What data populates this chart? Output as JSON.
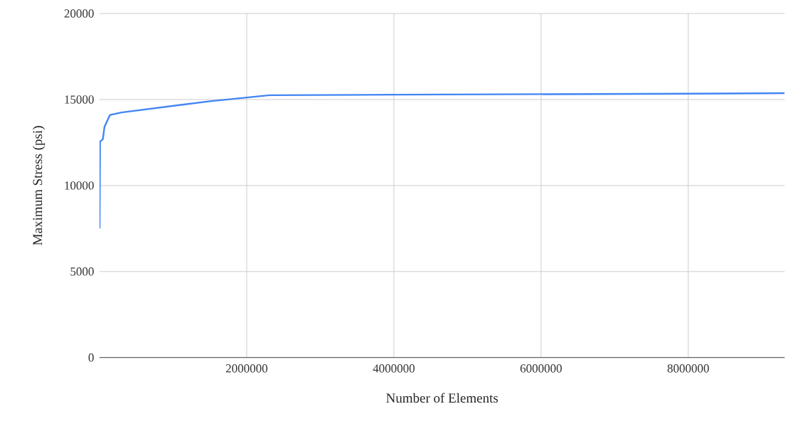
{
  "chart_data": {
    "type": "line",
    "xlabel": "Number of Elements",
    "ylabel": "Maximum Stress (psi)",
    "x": [
      1000,
      7000,
      45000,
      68000,
      142000,
      300000,
      1500000,
      2310000,
      4000000,
      8000000,
      9310000
    ],
    "series": [
      {
        "color": "#4285f4",
        "values": [
          7500,
          12550,
          12690,
          13420,
          14100,
          14250,
          14900,
          15250,
          15280,
          15340,
          15370
        ]
      }
    ],
    "xlim": [
      0,
      9310000
    ],
    "ylim": [
      0,
      20000
    ],
    "xticks": [
      2000000,
      4000000,
      6000000,
      8000000
    ],
    "yticks": [
      0,
      5000,
      10000,
      15000,
      20000
    ],
    "grid": true
  }
}
